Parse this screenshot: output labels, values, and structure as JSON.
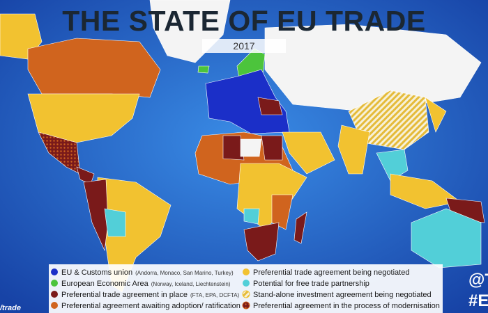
{
  "header": {
    "title": "THE STATE OF EU TRADE",
    "year": "2017"
  },
  "legend": [
    {
      "label": "EU & Customs union",
      "note": "(Andorra, Monaco, San Marino, Turkey)",
      "color": "#1b2fc8"
    },
    {
      "label": "European Economic Area",
      "note": "(Norway, Iceland, Liechtenstein)",
      "color": "#4cc43c"
    },
    {
      "label": "Preferential trade agreement in place",
      "note": "(FTA, EPA, DCFTA)",
      "color": "#7a1a1a"
    },
    {
      "label": "Preferential agreement awaiting adoption/ ratification",
      "color": "#d0641e"
    },
    {
      "label": "Preferential trade agreement being negotiated",
      "color": "#f2c230"
    },
    {
      "label": "Potential for free trade partnership",
      "color": "#52cfd8"
    },
    {
      "label": "Stand-alone investment agreement being negotiated",
      "color": "#f2c230",
      "pattern": "hatch"
    },
    {
      "label": "Preferential agreement in the process of modernisation",
      "color": "#d0641e",
      "pattern": "dots"
    }
  ],
  "corner": {
    "left": "/trade",
    "right_top": "@T",
    "right_bottom": "#E"
  }
}
